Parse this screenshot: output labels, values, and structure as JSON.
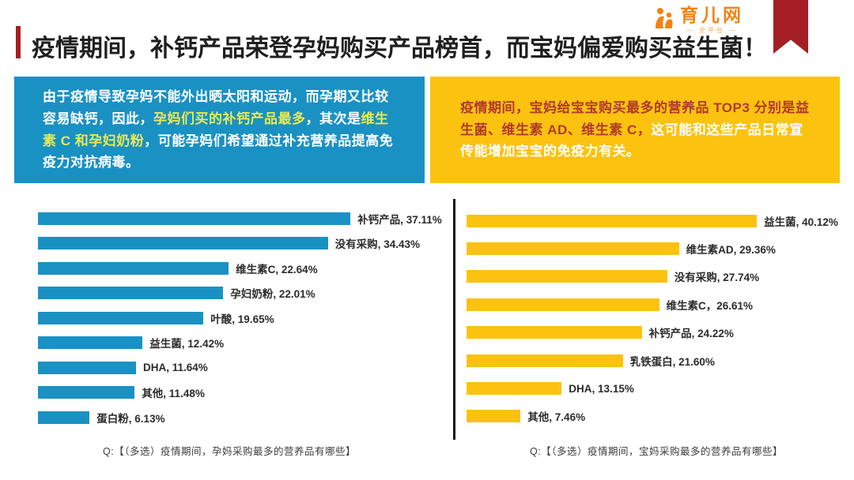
{
  "header": {
    "title": "疫情期间，补钙产品荣登孕妈购买产品榜首，而宝妈偏爱购买益生菌！",
    "logo": {
      "name": "育儿网",
      "subtext": "— 全平台 —"
    }
  },
  "colors": {
    "accent_red": "#a41e23",
    "blue": "#1a91c3",
    "yellow": "#fbc210",
    "highlight_text_yellow": "#e9ea4f",
    "emphasis_text_red": "#b13b29",
    "logo_orange": "#f08416"
  },
  "insight_boxes": {
    "left": {
      "segments": [
        {
          "style": "normal",
          "text": "由于疫情导致孕妈不能外出晒太阳和运动，而孕期又比较容易缺钙，因此，"
        },
        {
          "style": "highlight",
          "text": "孕妈们买的补钙产品最多"
        },
        {
          "style": "normal",
          "text": "，其次是"
        },
        {
          "style": "highlight",
          "text": "维生素 C 和孕妇奶粉"
        },
        {
          "style": "normal",
          "text": "，可能孕妈们希望通过补充营养品提高免疫力对抗病毒。"
        }
      ]
    },
    "right": {
      "segments": [
        {
          "style": "emphasis",
          "text": "疫情期间，宝妈给宝宝购买最多的营养品 TOP3 分别是益生菌、维生素 AD、维生素 C，"
        },
        {
          "style": "normal",
          "text": "这可能和这些产品日常宣传能增加宝宝的免疫力有关。"
        }
      ]
    }
  },
  "chart_data": [
    {
      "type": "bar",
      "orientation": "horizontal",
      "categories": [
        "补钙产品",
        "没有采购",
        "维生素C",
        "孕妇奶粉",
        "叶酸",
        "益生菌",
        "DHA",
        "其他",
        "蛋白粉"
      ],
      "values": [
        37.11,
        34.43,
        22.64,
        22.01,
        19.65,
        12.42,
        11.64,
        11.48,
        6.13
      ],
      "labels": [
        "补钙产品, 37.11%",
        "没有采购, 34.43%",
        "维生素C, 22.64%",
        "孕妇奶粉, 22.01%",
        "叶酸, 19.65%",
        "益生菌, 12.42%",
        "DHA, 11.64%",
        "其他, 11.48%",
        "蛋白粉, 6.13%"
      ],
      "value_suffix": "%",
      "xlim": [
        0,
        40
      ],
      "bar_color": "#1a91c3",
      "grid": false,
      "legend": false,
      "caption": "Q:【（多选）疫情期间，孕妈采购最多的营养品有哪些】"
    },
    {
      "type": "bar",
      "orientation": "horizontal",
      "categories": [
        "益生菌",
        "维生素AD",
        "没有采购",
        "维生素C",
        "补钙产品",
        "乳铁蛋白",
        "DHA",
        "其他"
      ],
      "values": [
        40.12,
        29.36,
        27.74,
        26.61,
        24.22,
        21.6,
        13.15,
        7.46
      ],
      "labels": [
        "益生菌, 40.12%",
        "维生素AD, 29.36%",
        "没有采购, 27.74%",
        "维生素C，26.61%",
        "补钙产品, 24.22%",
        "乳铁蛋白, 21.60%",
        "DHA, 13.15%",
        "其他, 7.46%"
      ],
      "value_suffix": "%",
      "xlim": [
        0,
        40
      ],
      "bar_color": "#fbc210",
      "axis_line": true,
      "grid": false,
      "legend": false,
      "caption": "Q:【（多选）疫情期间，宝妈采购最多的营养品有哪些】"
    }
  ]
}
